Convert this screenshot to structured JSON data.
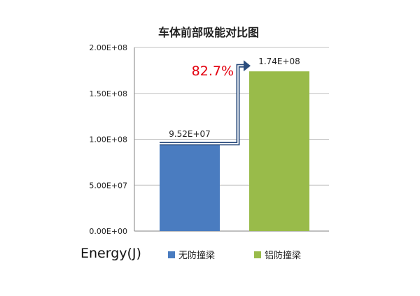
{
  "chart_data": {
    "type": "bar",
    "title": "车体前部吸能对比图",
    "ylabel": "Energy(J)",
    "ylim": [
      0,
      200000000
    ],
    "yticks": [
      0,
      50000000,
      100000000,
      150000000,
      200000000
    ],
    "ytick_labels": [
      "0.00E+00",
      "5.00E+07",
      "1.00E+08",
      "1.50E+08",
      "2.00E+08"
    ],
    "grid": true,
    "legend_position": "bottom",
    "series": [
      {
        "name": "无防撞梁",
        "value": 95200000,
        "label": "9.52E+07",
        "color": "#4a7cc0"
      },
      {
        "name": "铝防撞梁",
        "value": 174000000,
        "label": "1.74E+08",
        "color": "#99bb4a"
      }
    ],
    "annotation": {
      "text": "82.7%",
      "color": "#e3000f"
    },
    "colors": {
      "arrow": "#2b4d7e",
      "grid": "#c0c0c0",
      "axis": "#808080"
    }
  }
}
